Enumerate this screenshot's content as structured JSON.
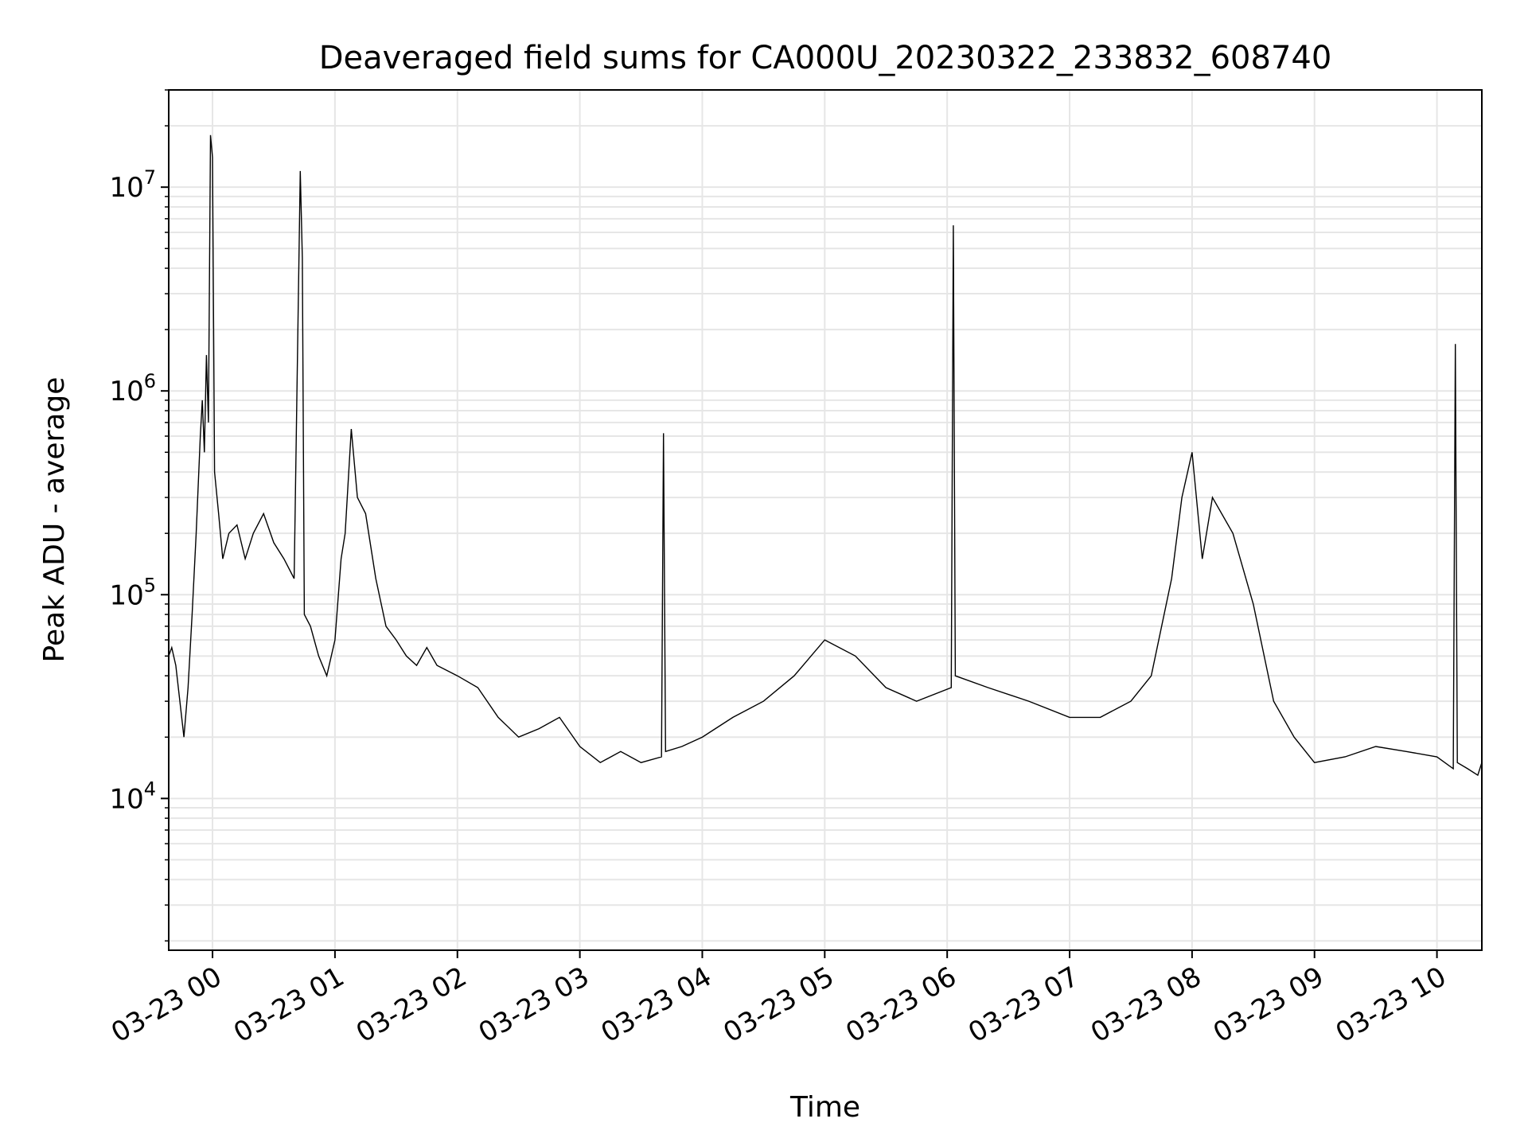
{
  "chart_data": {
    "type": "line",
    "title": "Deaveraged field sums for CA000U_20230322_233832_608740",
    "xlabel": "Time",
    "ylabel": "Peak ADU - average",
    "yscale": "log",
    "ylim": [
      1800,
      30000000
    ],
    "xlim": [
      "2023-03-22 23:38:32",
      "2023-03-23 10:22:00"
    ],
    "grid": true,
    "line_color": "#000000",
    "x_ticks": [
      {
        "t": "2023-03-23 00:00",
        "label": "03-23 00"
      },
      {
        "t": "2023-03-23 01:00",
        "label": "03-23 01"
      },
      {
        "t": "2023-03-23 02:00",
        "label": "03-23 02"
      },
      {
        "t": "2023-03-23 03:00",
        "label": "03-23 03"
      },
      {
        "t": "2023-03-23 04:00",
        "label": "03-23 04"
      },
      {
        "t": "2023-03-23 05:00",
        "label": "03-23 05"
      },
      {
        "t": "2023-03-23 06:00",
        "label": "03-23 06"
      },
      {
        "t": "2023-03-23 07:00",
        "label": "03-23 07"
      },
      {
        "t": "2023-03-23 08:00",
        "label": "03-23 08"
      },
      {
        "t": "2023-03-23 09:00",
        "label": "03-23 09"
      },
      {
        "t": "2023-03-23 10:00",
        "label": "03-23 10"
      }
    ],
    "y_ticks": [
      {
        "value": 10000,
        "base": "10",
        "exp": "4"
      },
      {
        "value": 100000,
        "base": "10",
        "exp": "5"
      },
      {
        "value": 1000000,
        "base": "10",
        "exp": "6"
      },
      {
        "value": 10000000,
        "base": "10",
        "exp": "7"
      }
    ],
    "series": [
      {
        "x": [
          "2023-03-22 23:38:32",
          "2023-03-22 23:40",
          "2023-03-22 23:42",
          "2023-03-22 23:44",
          "2023-03-22 23:46",
          "2023-03-22 23:48",
          "2023-03-22 23:50",
          "2023-03-22 23:52",
          "2023-03-22 23:54",
          "2023-03-22 23:55",
          "2023-03-22 23:56",
          "2023-03-22 23:57",
          "2023-03-22 23:58",
          "2023-03-22 23:59",
          "2023-03-23 00:00",
          "2023-03-23 00:01",
          "2023-03-23 00:03",
          "2023-03-23 00:05",
          "2023-03-23 00:08",
          "2023-03-23 00:12",
          "2023-03-23 00:16",
          "2023-03-23 00:20",
          "2023-03-23 00:25",
          "2023-03-23 00:30",
          "2023-03-23 00:35",
          "2023-03-23 00:40",
          "2023-03-23 00:43",
          "2023-03-23 00:44",
          "2023-03-23 00:45",
          "2023-03-23 00:48",
          "2023-03-23 00:52",
          "2023-03-23 00:56",
          "2023-03-23 01:00",
          "2023-03-23 01:03",
          "2023-03-23 01:05",
          "2023-03-23 01:08",
          "2023-03-23 01:11",
          "2023-03-23 01:15",
          "2023-03-23 01:20",
          "2023-03-23 01:25",
          "2023-03-23 01:30",
          "2023-03-23 01:35",
          "2023-03-23 01:40",
          "2023-03-23 01:45",
          "2023-03-23 01:50",
          "2023-03-23 02:00",
          "2023-03-23 02:10",
          "2023-03-23 02:20",
          "2023-03-23 02:30",
          "2023-03-23 02:40",
          "2023-03-23 02:50",
          "2023-03-23 03:00",
          "2023-03-23 03:10",
          "2023-03-23 03:20",
          "2023-03-23 03:30",
          "2023-03-23 03:40",
          "2023-03-23 03:41",
          "2023-03-23 03:42",
          "2023-03-23 03:50",
          "2023-03-23 04:00",
          "2023-03-23 04:15",
          "2023-03-23 04:30",
          "2023-03-23 04:45",
          "2023-03-23 05:00",
          "2023-03-23 05:15",
          "2023-03-23 05:30",
          "2023-03-23 05:45",
          "2023-03-23 06:02",
          "2023-03-23 06:03",
          "2023-03-23 06:04",
          "2023-03-23 06:20",
          "2023-03-23 06:40",
          "2023-03-23 07:00",
          "2023-03-23 07:15",
          "2023-03-23 07:30",
          "2023-03-23 07:40",
          "2023-03-23 07:50",
          "2023-03-23 07:55",
          "2023-03-23 08:00",
          "2023-03-23 08:05",
          "2023-03-23 08:10",
          "2023-03-23 08:20",
          "2023-03-23 08:30",
          "2023-03-23 08:40",
          "2023-03-23 08:50",
          "2023-03-23 09:00",
          "2023-03-23 09:15",
          "2023-03-23 09:30",
          "2023-03-23 09:45",
          "2023-03-23 10:00",
          "2023-03-23 10:08",
          "2023-03-23 10:09",
          "2023-03-23 10:10",
          "2023-03-23 10:15",
          "2023-03-23 10:20",
          "2023-03-23 10:22"
        ],
        "values": [
          50000,
          55000,
          45000,
          30000,
          20000,
          35000,
          80000,
          200000,
          600000,
          900000,
          500000,
          1500000,
          700000,
          18000000,
          14000000,
          400000,
          250000,
          150000,
          200000,
          220000,
          150000,
          200000,
          250000,
          180000,
          150000,
          120000,
          12000000,
          4500000,
          80000,
          70000,
          50000,
          40000,
          60000,
          150000,
          200000,
          650000,
          300000,
          250000,
          120000,
          70000,
          60000,
          50000,
          45000,
          55000,
          45000,
          40000,
          35000,
          25000,
          20000,
          22000,
          25000,
          18000,
          15000,
          17000,
          15000,
          16000,
          620000,
          17000,
          18000,
          20000,
          25000,
          30000,
          40000,
          60000,
          50000,
          35000,
          30000,
          35000,
          6500000,
          40000,
          35000,
          30000,
          25000,
          25000,
          30000,
          40000,
          120000,
          300000,
          500000,
          150000,
          300000,
          200000,
          90000,
          30000,
          20000,
          15000,
          16000,
          18000,
          17000,
          16000,
          14000,
          1700000,
          15000,
          14000,
          13000,
          15000
        ]
      }
    ]
  }
}
